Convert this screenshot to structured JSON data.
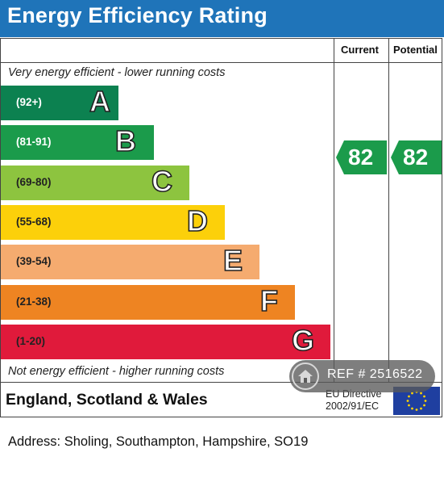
{
  "title": "Energy Efficiency Rating",
  "columns": {
    "current": "Current",
    "potential": "Potential"
  },
  "captions": {
    "top": "Very energy efficient - lower running costs",
    "bottom": "Not energy efficient - higher running costs"
  },
  "bands": [
    {
      "range": "(92+)",
      "letter": "A",
      "color": "#0c8150"
    },
    {
      "range": "(81-91)",
      "letter": "B",
      "color": "#1b9b4b"
    },
    {
      "range": "(69-80)",
      "letter": "C",
      "color": "#8dc43f"
    },
    {
      "range": "(55-68)",
      "letter": "D",
      "color": "#fcd00a"
    },
    {
      "range": "(39-54)",
      "letter": "E",
      "color": "#f5ab6f"
    },
    {
      "range": "(21-38)",
      "letter": "F",
      "color": "#ee8422"
    },
    {
      "range": "(1-20)",
      "letter": "G",
      "color": "#e01a3b"
    }
  ],
  "ratings": {
    "current": {
      "value": "82",
      "band": "B",
      "color": "#1b9b4b"
    },
    "potential": {
      "value": "82",
      "band": "B",
      "color": "#1b9b4b"
    }
  },
  "footer": {
    "region": "England, Scotland & Wales",
    "directive_line1": "EU Directive",
    "directive_line2": "2002/91/EC"
  },
  "watermark": {
    "text": "REF # 2516522",
    "icon": "home-icon"
  },
  "address": "Address: Sholing, Southampton, Hampshire, SO19"
}
